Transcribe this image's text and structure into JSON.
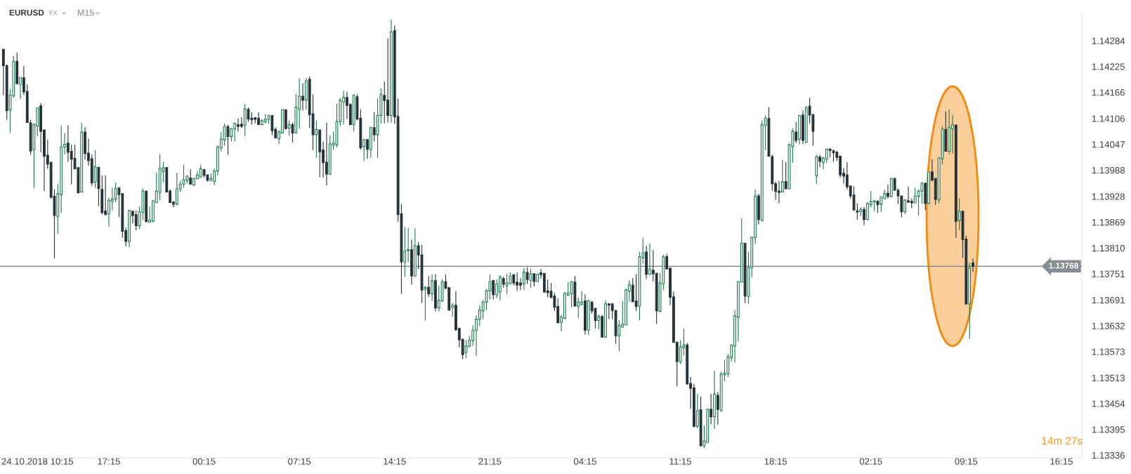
{
  "chart_data": {
    "type": "candlestick",
    "title": "EURUSD",
    "annotations": [
      "FX",
      "M15",
      "14m 27s"
    ],
    "categories": [
      null,
      null,
      null,
      null,
      null,
      null,
      null,
      null,
      null,
      null,
      "24.10.2018 10:15",
      null,
      null,
      null,
      null,
      null,
      null,
      null,
      null,
      null,
      null,
      null,
      null,
      null,
      null,
      null,
      null,
      null,
      null,
      null,
      null,
      "17:15",
      null,
      null,
      null,
      null,
      null,
      null,
      null,
      null,
      null,
      null,
      null,
      null,
      null,
      null,
      null,
      null,
      null,
      null,
      null,
      null,
      null,
      null,
      null,
      null,
      null,
      null,
      null,
      "00:15",
      null,
      null,
      null,
      null,
      null,
      null,
      null,
      null,
      null,
      null,
      null,
      null,
      null,
      null,
      null,
      null,
      null,
      null,
      null,
      null,
      null,
      null,
      null,
      null,
      null,
      null,
      null,
      "07:15",
      null,
      null,
      null,
      null,
      null,
      null,
      null,
      null,
      null,
      null,
      null,
      null,
      null,
      null,
      null,
      null,
      null,
      null,
      null,
      null,
      null,
      null,
      null,
      null,
      null,
      null,
      null,
      "14:15",
      null,
      null,
      null,
      null,
      null,
      null,
      null,
      null,
      null,
      null,
      null,
      null,
      null,
      null,
      null,
      null,
      null,
      null,
      null,
      null,
      null,
      null,
      null,
      null,
      null,
      null,
      null,
      "21:15",
      null,
      null,
      null,
      null,
      null,
      null,
      null,
      null,
      null,
      null,
      null,
      null,
      null,
      null,
      null,
      null,
      null,
      null,
      null,
      null,
      null,
      null,
      null,
      null,
      null,
      null,
      null,
      "04:15",
      null,
      null,
      null,
      null,
      null,
      null,
      null,
      null,
      null,
      null,
      null,
      null,
      null,
      null,
      null,
      null,
      null,
      null,
      null,
      null,
      null,
      null,
      null,
      null,
      null,
      null,
      null,
      "11:15",
      null,
      null,
      null,
      null,
      null,
      null,
      null,
      null,
      null,
      null,
      null,
      null,
      null,
      null,
      null,
      null,
      null,
      null,
      null,
      null,
      null,
      null,
      null,
      null,
      null,
      null,
      null,
      "18:15",
      null,
      null,
      null,
      null,
      null,
      null,
      null,
      null,
      null,
      null,
      null,
      null,
      null,
      null,
      null,
      null,
      null,
      null,
      null,
      null,
      null,
      null,
      null,
      null,
      null,
      null,
      null,
      "02:15",
      null,
      null,
      null,
      null,
      null,
      null,
      null,
      null,
      null,
      null,
      null,
      null,
      null,
      null,
      null,
      null,
      null,
      null,
      null,
      null,
      null,
      null,
      null,
      null,
      null,
      null,
      null,
      "09:15",
      null,
      null,
      null,
      null,
      null,
      null,
      null,
      null,
      null,
      null,
      null,
      null,
      null,
      null,
      null,
      null,
      null,
      null,
      null,
      null,
      null,
      null,
      null,
      null,
      null,
      null,
      null,
      "16:15",
      null,
      null,
      null,
      null,
      null,
      null
    ],
    "ohlc": [
      [
        1.14264,
        1.14266,
        1.1416,
        1.14227
      ],
      [
        1.14227,
        1.1423,
        1.14103,
        1.14124
      ],
      [
        1.14126,
        1.14173,
        1.14073,
        1.1416
      ],
      [
        1.14158,
        1.14249,
        1.14154,
        1.14237
      ],
      [
        1.14237,
        1.14257,
        1.14184,
        1.14186
      ],
      [
        1.14184,
        1.142,
        1.14151,
        1.142
      ],
      [
        1.14199,
        1.14226,
        1.1416,
        1.14167
      ],
      [
        1.14168,
        1.14184,
        1.14097,
        1.14097
      ],
      [
        1.14096,
        1.14103,
        1.14023,
        1.14032
      ],
      [
        1.14035,
        1.14095,
        1.13947,
        1.14093
      ],
      [
        1.14089,
        1.14131,
        1.14066,
        1.14131
      ],
      [
        1.14135,
        1.14141,
        1.14029,
        1.14077
      ],
      [
        1.1408,
        1.1408,
        1.1394,
        1.1402
      ],
      [
        1.14022,
        1.14058,
        1.13991,
        1.14002
      ],
      [
        1.14006,
        1.14007,
        1.13923,
        1.13926
      ],
      [
        1.13928,
        1.13944,
        1.13786,
        1.13884
      ],
      [
        1.13882,
        1.13956,
        1.13842,
        1.13934
      ],
      [
        1.13932,
        1.1409,
        1.1389,
        1.14041
      ],
      [
        1.14041,
        1.14073,
        1.14024,
        1.14047
      ],
      [
        1.1405,
        1.14091,
        1.14007,
        1.14029
      ],
      [
        1.14031,
        1.14046,
        1.13955,
        1.14013
      ],
      [
        1.14015,
        1.14046,
        1.13991,
        1.13991
      ],
      [
        1.13994,
        1.13995,
        1.13936,
        1.13936
      ],
      [
        1.13938,
        1.14096,
        1.13937,
        1.14075
      ],
      [
        1.14075,
        1.14086,
        1.14012,
        1.14026
      ],
      [
        1.14027,
        1.1406,
        1.13998,
        1.1401
      ],
      [
        1.14014,
        1.14024,
        1.13952,
        1.13959
      ],
      [
        1.13961,
        1.14034,
        1.13948,
        1.13996
      ],
      [
        1.13994,
        1.13996,
        1.13906,
        1.13946
      ],
      [
        1.13944,
        1.13976,
        1.13887,
        1.13891
      ],
      [
        1.13895,
        1.13976,
        1.13884,
        1.13887
      ],
      [
        1.13888,
        1.13925,
        1.13859,
        1.13919
      ],
      [
        1.13917,
        1.13948,
        1.13896,
        1.13922
      ],
      [
        1.13922,
        1.1396,
        1.13914,
        1.13946
      ],
      [
        1.13947,
        1.13949,
        1.13881,
        1.13932
      ],
      [
        1.13934,
        1.13936,
        1.13833,
        1.13848
      ],
      [
        1.1385,
        1.13857,
        1.13814,
        1.13825
      ],
      [
        1.13825,
        1.13896,
        1.13811,
        1.13896
      ],
      [
        1.13894,
        1.13895,
        1.13866,
        1.13884
      ],
      [
        1.13886,
        1.13896,
        1.1385,
        1.13861
      ],
      [
        1.13861,
        1.13905,
        1.13853,
        1.13893
      ],
      [
        1.13891,
        1.13946,
        1.13874,
        1.1394
      ],
      [
        1.1394,
        1.1394,
        1.1387,
        1.1387
      ],
      [
        1.13869,
        1.13905,
        1.13868,
        1.13874
      ],
      [
        1.13871,
        1.13919,
        1.13869,
        1.13918
      ],
      [
        1.13914,
        1.13982,
        1.13913,
        1.1394
      ],
      [
        1.13937,
        1.14025,
        1.13919,
        1.13992
      ],
      [
        1.13985,
        1.14007,
        1.1396,
        1.13993
      ],
      [
        1.13994,
        1.13995,
        1.13938,
        1.13938
      ],
      [
        1.1394,
        1.13944,
        1.13913,
        1.13914
      ],
      [
        1.13915,
        1.13917,
        1.13903,
        1.1391
      ],
      [
        1.13911,
        1.13982,
        1.13907,
        1.13945
      ],
      [
        1.13945,
        1.13963,
        1.13938,
        1.13956
      ],
      [
        1.13956,
        1.14,
        1.13948,
        1.13966
      ],
      [
        1.13965,
        1.13977,
        1.13957,
        1.13974
      ],
      [
        1.1397,
        1.1399,
        1.13955,
        1.13956
      ],
      [
        1.13954,
        1.1397,
        1.13952,
        1.13969
      ],
      [
        1.13968,
        1.13986,
        1.13967,
        1.13977
      ],
      [
        1.13972,
        1.14,
        1.13971,
        1.13991
      ],
      [
        1.13989,
        1.13991,
        1.13971,
        1.13976
      ],
      [
        1.13977,
        1.13978,
        1.13962,
        1.13965
      ],
      [
        1.13964,
        1.1398,
        1.13963,
        1.13969
      ],
      [
        1.13962,
        1.13992,
        1.13953,
        1.13986
      ],
      [
        1.13986,
        1.14045,
        1.13976,
        1.14041
      ],
      [
        1.14039,
        1.14075,
        1.14031,
        1.14059
      ],
      [
        1.14057,
        1.14095,
        1.14044,
        1.14088
      ],
      [
        1.14088,
        1.14091,
        1.14023,
        1.14065
      ],
      [
        1.14065,
        1.14084,
        1.14054,
        1.14083
      ],
      [
        1.14082,
        1.14097,
        1.14054,
        1.14095
      ],
      [
        1.14092,
        1.14106,
        1.14076,
        1.14088
      ],
      [
        1.14093,
        1.14109,
        1.14085,
        1.14088
      ],
      [
        1.1409,
        1.1414,
        1.14066,
        1.14128
      ],
      [
        1.14127,
        1.14132,
        1.14099,
        1.14105
      ],
      [
        1.14107,
        1.1412,
        1.14092,
        1.14103
      ],
      [
        1.14108,
        1.14108,
        1.14095,
        1.14104
      ],
      [
        1.14107,
        1.1412,
        1.14092,
        1.14092
      ],
      [
        1.14092,
        1.14105,
        1.14091,
        1.14101
      ],
      [
        1.14099,
        1.14116,
        1.14095,
        1.14105
      ],
      [
        1.14104,
        1.14115,
        1.14094,
        1.14113
      ],
      [
        1.14113,
        1.14114,
        1.14068,
        1.14078
      ],
      [
        1.14081,
        1.14086,
        1.1406,
        1.14062
      ],
      [
        1.1406,
        1.14078,
        1.14048,
        1.14076
      ],
      [
        1.14073,
        1.14127,
        1.14072,
        1.14126
      ],
      [
        1.14126,
        1.14127,
        1.14081,
        1.14083
      ],
      [
        1.14084,
        1.14102,
        1.14067,
        1.14092
      ],
      [
        1.14092,
        1.14097,
        1.14051,
        1.14073
      ],
      [
        1.14073,
        1.14162,
        1.14072,
        1.14132
      ],
      [
        1.14127,
        1.14198,
        1.14083,
        1.14157
      ],
      [
        1.14157,
        1.14187,
        1.14124,
        1.14148
      ],
      [
        1.14148,
        1.14199,
        1.14127,
        1.14192
      ],
      [
        1.14196,
        1.14202,
        1.14085,
        1.14115
      ],
      [
        1.14117,
        1.14161,
        1.14034,
        1.14069
      ],
      [
        1.14069,
        1.14102,
        1.14016,
        1.14081
      ],
      [
        1.1408,
        1.14081,
        1.13972,
        1.1403
      ],
      [
        1.14034,
        1.14053,
        1.13971,
        1.14005
      ],
      [
        1.14006,
        1.14097,
        1.13953,
        1.13979
      ],
      [
        1.13979,
        1.14067,
        1.13977,
        1.14048
      ],
      [
        1.14045,
        1.14076,
        1.14034,
        1.1405
      ],
      [
        1.14046,
        1.1414,
        1.1404,
        1.14099
      ],
      [
        1.14099,
        1.14153,
        1.14089,
        1.14148
      ],
      [
        1.14143,
        1.1417,
        1.14092,
        1.14154
      ],
      [
        1.14154,
        1.14167,
        1.14105,
        1.14136
      ],
      [
        1.14138,
        1.14141,
        1.14092,
        1.14092
      ],
      [
        1.14092,
        1.14161,
        1.14076,
        1.14159
      ],
      [
        1.14156,
        1.14161,
        1.14102,
        1.14105
      ],
      [
        1.14107,
        1.14127,
        1.14035,
        1.14039
      ],
      [
        1.14042,
        1.1406,
        1.14009,
        1.14058
      ],
      [
        1.14058,
        1.14058,
        1.14014,
        1.14036
      ],
      [
        1.14035,
        1.14087,
        1.14016,
        1.14086
      ],
      [
        1.14085,
        1.14121,
        1.14054,
        1.14069
      ],
      [
        1.14069,
        1.14152,
        1.14016,
        1.14113
      ],
      [
        1.14113,
        1.14175,
        1.14094,
        1.14162
      ],
      [
        1.14159,
        1.14191,
        1.14095,
        1.14147
      ],
      [
        1.14148,
        1.14289,
        1.14097,
        1.14113
      ],
      [
        1.14113,
        1.14332,
        1.14097,
        1.14304
      ],
      [
        1.14307,
        1.14319,
        1.14094,
        1.1411
      ],
      [
        1.14111,
        1.14151,
        1.1387,
        1.13886
      ],
      [
        1.13888,
        1.1391,
        1.13705,
        1.13778
      ],
      [
        1.13778,
        1.13858,
        1.13744,
        1.13803
      ],
      [
        1.13804,
        1.13856,
        1.13778,
        1.13806
      ],
      [
        1.13806,
        1.13829,
        1.13726,
        1.13746
      ],
      [
        1.13746,
        1.13855,
        1.13744,
        1.13815
      ],
      [
        1.13815,
        1.13824,
        1.13762,
        1.13794
      ],
      [
        1.13794,
        1.13817,
        1.13684,
        1.13714
      ],
      [
        1.13716,
        1.13723,
        1.13644,
        1.1372
      ],
      [
        1.1372,
        1.13746,
        1.13698,
        1.13705
      ],
      [
        1.13705,
        1.1375,
        1.13689,
        1.13735
      ],
      [
        1.13735,
        1.1375,
        1.13665,
        1.13673
      ],
      [
        1.13673,
        1.13724,
        1.13665,
        1.1369
      ],
      [
        1.13689,
        1.13738,
        1.13687,
        1.13733
      ],
      [
        1.13733,
        1.13749,
        1.13716,
        1.13718
      ],
      [
        1.13719,
        1.13721,
        1.13666,
        1.13668
      ],
      [
        1.13674,
        1.13684,
        1.13653,
        1.13679
      ],
      [
        1.13679,
        1.13711,
        1.1362,
        1.13623
      ],
      [
        1.13626,
        1.13628,
        1.13583,
        1.136
      ],
      [
        1.13601,
        1.13603,
        1.13556,
        1.13566
      ],
      [
        1.13571,
        1.13599,
        1.13558,
        1.13586
      ],
      [
        1.13585,
        1.13609,
        1.13583,
        1.13599
      ],
      [
        1.13598,
        1.13633,
        1.13586,
        1.13621
      ],
      [
        1.13622,
        1.13656,
        1.13563,
        1.13647
      ],
      [
        1.13647,
        1.13679,
        1.13631,
        1.13668
      ],
      [
        1.13666,
        1.13691,
        1.13647,
        1.13686
      ],
      [
        1.13686,
        1.13716,
        1.13668,
        1.13712
      ],
      [
        1.13712,
        1.13749,
        1.13692,
        1.13733
      ],
      [
        1.13736,
        1.13736,
        1.13692,
        1.13703
      ],
      [
        1.13703,
        1.13738,
        1.13695,
        1.13728
      ],
      [
        1.13709,
        1.13748,
        1.1369,
        1.13744
      ],
      [
        1.1374,
        1.13744,
        1.13719,
        1.13727
      ],
      [
        1.13723,
        1.1375,
        1.13705,
        1.1373
      ],
      [
        1.13728,
        1.13754,
        1.13727,
        1.13746
      ],
      [
        1.13749,
        1.13749,
        1.13725,
        1.1373
      ],
      [
        1.13732,
        1.13754,
        1.13712,
        1.13725
      ],
      [
        1.1373,
        1.13741,
        1.13714,
        1.13725
      ],
      [
        1.13728,
        1.13765,
        1.13714,
        1.13755
      ],
      [
        1.13754,
        1.13766,
        1.13728,
        1.13738
      ],
      [
        1.13736,
        1.13762,
        1.13719,
        1.13751
      ],
      [
        1.13751,
        1.13751,
        1.13722,
        1.13733
      ],
      [
        1.13733,
        1.13751,
        1.13733,
        1.1375
      ],
      [
        1.13753,
        1.13762,
        1.1374,
        1.13749
      ],
      [
        1.13752,
        1.13752,
        1.13708,
        1.13709
      ],
      [
        1.13712,
        1.13738,
        1.13697,
        1.13708
      ],
      [
        1.13711,
        1.1373,
        1.13695,
        1.13697
      ],
      [
        1.137,
        1.13707,
        1.13666,
        1.13674
      ],
      [
        1.13676,
        1.13695,
        1.13638,
        1.13639
      ],
      [
        1.1364,
        1.13657,
        1.13619,
        1.13652
      ],
      [
        1.13649,
        1.13709,
        1.13647,
        1.13707
      ],
      [
        1.13702,
        1.13732,
        1.137,
        1.13707
      ],
      [
        1.13705,
        1.13735,
        1.13674,
        1.13733
      ],
      [
        1.13732,
        1.13746,
        1.13677,
        1.13677
      ],
      [
        1.13677,
        1.13697,
        1.1365,
        1.13687
      ],
      [
        1.13681,
        1.13711,
        1.13679,
        1.13686
      ],
      [
        1.13689,
        1.13704,
        1.13612,
        1.13622
      ],
      [
        1.13622,
        1.13692,
        1.13611,
        1.13689
      ],
      [
        1.13686,
        1.13689,
        1.1366,
        1.13666
      ],
      [
        1.13671,
        1.13674,
        1.13626,
        1.13644
      ],
      [
        1.13644,
        1.13658,
        1.13624,
        1.13653
      ],
      [
        1.13653,
        1.13657,
        1.13606,
        1.13606
      ],
      [
        1.13606,
        1.1369,
        1.13606,
        1.13682
      ],
      [
        1.13682,
        1.13684,
        1.13647,
        1.13679
      ],
      [
        1.13682,
        1.13684,
        1.13647,
        1.13667
      ],
      [
        1.13667,
        1.13668,
        1.13591,
        1.13609
      ],
      [
        1.13609,
        1.13645,
        1.13574,
        1.13633
      ],
      [
        1.13629,
        1.13689,
        1.13629,
        1.13636
      ],
      [
        1.13634,
        1.13717,
        1.13634,
        1.13714
      ],
      [
        1.13711,
        1.13736,
        1.13687,
        1.13726
      ],
      [
        1.13725,
        1.13741,
        1.13687,
        1.13687
      ],
      [
        1.13689,
        1.1375,
        1.13666,
        1.13676
      ],
      [
        1.13677,
        1.13801,
        1.13644,
        1.1379
      ],
      [
        1.13788,
        1.13833,
        1.13775,
        1.13799
      ],
      [
        1.13801,
        1.13815,
        1.13739,
        1.1375
      ],
      [
        1.1375,
        1.1382,
        1.13748,
        1.13762
      ],
      [
        1.13759,
        1.13805,
        1.13733,
        1.13751
      ],
      [
        1.13752,
        1.13753,
        1.13636,
        1.13666
      ],
      [
        1.13665,
        1.13752,
        1.13663,
        1.1373
      ],
      [
        1.13728,
        1.13794,
        1.13714,
        1.1379
      ],
      [
        1.1379,
        1.13796,
        1.1376,
        1.13762
      ],
      [
        1.13764,
        1.13764,
        1.13679,
        1.13697
      ],
      [
        1.13698,
        1.13711,
        1.13594,
        1.13594
      ],
      [
        1.13594,
        1.13596,
        1.13494,
        1.1355
      ],
      [
        1.1355,
        1.13599,
        1.13545,
        1.13584
      ],
      [
        1.13582,
        1.13626,
        1.13564,
        1.13588
      ],
      [
        1.13588,
        1.13593,
        1.13497,
        1.13499
      ],
      [
        1.135,
        1.13515,
        1.13442,
        1.13489
      ],
      [
        1.1349,
        1.13499,
        1.134,
        1.13402
      ],
      [
        1.13402,
        1.13476,
        1.13398,
        1.13438
      ],
      [
        1.1344,
        1.1347,
        1.13355,
        1.13358
      ],
      [
        1.13357,
        1.13403,
        1.13353,
        1.13369
      ],
      [
        1.13365,
        1.13441,
        1.13365,
        1.13441
      ],
      [
        1.13441,
        1.13476,
        1.13407,
        1.13424
      ],
      [
        1.13424,
        1.13529,
        1.13396,
        1.13476
      ],
      [
        1.13473,
        1.13481,
        1.13406,
        1.13441
      ],
      [
        1.13438,
        1.13527,
        1.13435,
        1.13522
      ],
      [
        1.1352,
        1.13554,
        1.13505,
        1.13524
      ],
      [
        1.13522,
        1.13568,
        1.13515,
        1.13561
      ],
      [
        1.13559,
        1.13589,
        1.13551,
        1.13588
      ],
      [
        1.13586,
        1.13668,
        1.13548,
        1.13655
      ],
      [
        1.13652,
        1.13735,
        1.13596,
        1.13733
      ],
      [
        1.13732,
        1.13878,
        1.13731,
        1.13821
      ],
      [
        1.13821,
        1.13821,
        1.13684,
        1.137
      ],
      [
        1.13699,
        1.13801,
        1.13682,
        1.13765
      ],
      [
        1.13765,
        1.13836,
        1.13743,
        1.13834
      ],
      [
        1.13834,
        1.13944,
        1.13819,
        1.13929
      ],
      [
        1.13929,
        1.13934,
        1.13864,
        1.13875
      ],
      [
        1.13873,
        1.14102,
        1.13871,
        1.14092
      ],
      [
        1.1409,
        1.14113,
        1.14033,
        1.14107
      ],
      [
        1.14106,
        1.14132,
        1.1402,
        1.1402
      ],
      [
        1.14019,
        1.14023,
        1.13941,
        1.13957
      ],
      [
        1.13957,
        1.13962,
        1.1392,
        1.13939
      ],
      [
        1.1394,
        1.13963,
        1.13912,
        1.13937
      ],
      [
        1.13938,
        1.14011,
        1.13937,
        1.13961
      ],
      [
        1.13962,
        1.14006,
        1.13945,
        1.13945
      ],
      [
        1.13945,
        1.14049,
        1.13945,
        1.14046
      ],
      [
        1.14042,
        1.14084,
        1.14005,
        1.14077
      ],
      [
        1.14075,
        1.14098,
        1.1405,
        1.14056
      ],
      [
        1.14059,
        1.14114,
        1.14047,
        1.14113
      ],
      [
        1.14114,
        1.14124,
        1.14048,
        1.14056
      ],
      [
        1.14052,
        1.14135,
        1.1405,
        1.14131
      ],
      [
        1.14134,
        1.14154,
        1.14095,
        1.14114
      ],
      [
        1.14115,
        1.14116,
        1.14044,
        1.14077
      ],
      [
        1.13975,
        1.14023,
        1.13956,
        1.14019
      ],
      [
        1.14018,
        1.14022,
        1.13995,
        1.14008
      ],
      [
        1.14006,
        1.14018,
        1.1399,
        1.14016
      ],
      [
        1.14013,
        1.14037,
        1.14005,
        1.14036
      ],
      [
        1.14036,
        1.14038,
        1.14017,
        1.14033
      ],
      [
        1.14032,
        1.14035,
        1.14007,
        1.14028
      ],
      [
        1.14029,
        1.14032,
        1.14009,
        1.14017
      ],
      [
        1.1402,
        1.14021,
        1.13971,
        1.13977
      ],
      [
        1.13981,
        1.13993,
        1.13957,
        1.13974
      ],
      [
        1.13977,
        1.14006,
        1.13944,
        1.1395
      ],
      [
        1.13952,
        1.13952,
        1.13923,
        1.13929
      ],
      [
        1.13931,
        1.13951,
        1.13895,
        1.13897
      ],
      [
        1.13895,
        1.13912,
        1.13875,
        1.13892
      ],
      [
        1.13893,
        1.13903,
        1.13882,
        1.13898
      ],
      [
        1.13898,
        1.13904,
        1.13862,
        1.13875
      ],
      [
        1.13875,
        1.13915,
        1.13874,
        1.13911
      ],
      [
        1.13909,
        1.13941,
        1.13903,
        1.13916
      ],
      [
        1.13915,
        1.13919,
        1.13894,
        1.13918
      ],
      [
        1.13917,
        1.13919,
        1.1389,
        1.13909
      ],
      [
        1.1391,
        1.13928,
        1.13892,
        1.13927
      ],
      [
        1.13923,
        1.13943,
        1.13922,
        1.13934
      ],
      [
        1.13935,
        1.13955,
        1.13923,
        1.13928
      ],
      [
        1.13928,
        1.13969,
        1.13926,
        1.13969
      ],
      [
        1.13969,
        1.13969,
        1.13941,
        1.13942
      ],
      [
        1.13942,
        1.13946,
        1.1391,
        1.13929
      ],
      [
        1.13929,
        1.13929,
        1.1388,
        1.13893
      ],
      [
        1.13893,
        1.13921,
        1.13887,
        1.1392
      ],
      [
        1.13918,
        1.1395,
        1.13913,
        1.13915
      ],
      [
        1.13917,
        1.13923,
        1.13901,
        1.13913
      ],
      [
        1.13913,
        1.13948,
        1.13912,
        1.13929
      ],
      [
        1.13928,
        1.13944,
        1.13885,
        1.1394
      ],
      [
        1.1394,
        1.13961,
        1.13911,
        1.13958
      ],
      [
        1.13958,
        1.1396,
        1.13897,
        1.13912
      ],
      [
        1.13912,
        1.13985,
        1.13912,
        1.13984
      ],
      [
        1.13984,
        1.14013,
        1.13963,
        1.13965
      ],
      [
        1.13969,
        1.1397,
        1.13909,
        1.13921
      ],
      [
        1.1392,
        1.14017,
        1.13912,
        1.14016
      ],
      [
        1.14014,
        1.14089,
        1.14001,
        1.14082
      ],
      [
        1.14081,
        1.14122,
        1.14031,
        1.14031
      ],
      [
        1.14031,
        1.14127,
        1.14024,
        1.14086
      ],
      [
        1.14082,
        1.14114,
        1.14026,
        1.14092
      ],
      [
        1.14091,
        1.14092,
        1.13833,
        1.13871
      ],
      [
        1.13873,
        1.13924,
        1.13851,
        1.13894
      ],
      [
        1.13894,
        1.13894,
        1.13787,
        1.13829
      ],
      [
        1.1383,
        1.13838,
        1.13682,
        1.13682
      ],
      [
        1.13682,
        1.13776,
        1.13602,
        1.13764
      ],
      [
        1.13776,
        1.13786,
        1.13755,
        1.13768
      ],
      null,
      null,
      null,
      null,
      null,
      null,
      null,
      null,
      null,
      null,
      null,
      null,
      null,
      null,
      null,
      null,
      null,
      null,
      null,
      null,
      null,
      null,
      null,
      null,
      null,
      null,
      null,
      null,
      null,
      null,
      null,
      null
    ],
    "colors": [
      "#26323a",
      "#26323a",
      "#1e7d4f",
      "#1e7d4f",
      "#26323a",
      "#1e7d4f",
      "#26323a",
      "#26323a",
      "#26323a",
      "#1e7d4f",
      "#1e7d4f",
      "#26323a",
      "#26323a",
      "#26323a",
      "#26323a",
      "#26323a",
      "#1e7d4f",
      "#1e7d4f",
      "#1e7d4f",
      "#26323a",
      "#26323a",
      "#26323a",
      "#26323a",
      "#1e7d4f",
      "#26323a",
      "#26323a",
      "#26323a",
      "#1e7d4f",
      "#26323a",
      "#26323a",
      "#26323a",
      "#1e7d4f",
      "#1e7d4f",
      "#1e7d4f",
      "#26323a",
      "#26323a",
      "#26323a",
      "#1e7d4f",
      "#26323a",
      "#26323a",
      "#1e7d4f",
      "#1e7d4f",
      "#26323a",
      "#1e7d4f",
      "#1e7d4f",
      "#1e7d4f",
      "#1e7d4f",
      "#1e7d4f",
      "#26323a",
      "#26323a",
      "#26323a",
      "#1e7d4f",
      "#1e7d4f",
      "#1e7d4f",
      "#1e7d4f",
      "#26323a",
      "#1e7d4f",
      "#1e7d4f",
      "#1e7d4f",
      "#26323a",
      "#26323a",
      "#1e7d4f",
      "#1e7d4f",
      "#1e7d4f",
      "#1e7d4f",
      "#1e7d4f",
      "#26323a",
      "#1e7d4f",
      "#1e7d4f",
      "#26323a",
      "#26323a",
      "#1e7d4f",
      "#26323a",
      "#26323a",
      "#26323a",
      "#26323a",
      "#1e7d4f",
      "#1e7d4f",
      "#1e7d4f",
      "#26323a",
      "#26323a",
      "#1e7d4f",
      "#1e7d4f",
      "#26323a",
      "#1e7d4f",
      "#26323a",
      "#1e7d4f",
      "#1e7d4f",
      "#26323a",
      "#1e7d4f",
      "#26323a",
      "#26323a",
      "#1e7d4f",
      "#26323a",
      "#26323a",
      "#26323a",
      "#1e7d4f",
      "#1e7d4f",
      "#1e7d4f",
      "#1e7d4f",
      "#1e7d4f",
      "#26323a",
      "#26323a",
      "#1e7d4f",
      "#26323a",
      "#26323a",
      "#1e7d4f",
      "#26323a",
      "#1e7d4f",
      "#26323a",
      "#1e7d4f",
      "#1e7d4f",
      "#26323a",
      "#26323a",
      "#1e7d4f",
      "#26323a",
      "#26323a",
      "#26323a",
      "#1e7d4f",
      "#1e7d4f",
      "#26323a",
      "#1e7d4f",
      "#26323a",
      "#26323a",
      "#1e7d4f",
      "#26323a",
      "#1e7d4f",
      "#26323a",
      "#1e7d4f",
      "#1e7d4f",
      "#26323a",
      "#26323a",
      "#1e7d4f",
      "#26323a",
      "#26323a",
      "#26323a",
      "#1e7d4f",
      "#1e7d4f",
      "#1e7d4f",
      "#1e7d4f",
      "#1e7d4f",
      "#1e7d4f",
      "#1e7d4f",
      "#1e7d4f",
      "#26323a",
      "#1e7d4f",
      "#1e7d4f",
      "#26323a",
      "#1e7d4f",
      "#1e7d4f",
      "#26323a",
      "#26323a",
      "#26323a",
      "#1e7d4f",
      "#26323a",
      "#1e7d4f",
      "#26323a",
      "#1e7d4f",
      "#26323a",
      "#26323a",
      "#26323a",
      "#26323a",
      "#26323a",
      "#26323a",
      "#1e7d4f",
      "#1e7d4f",
      "#1e7d4f",
      "#1e7d4f",
      "#26323a",
      "#1e7d4f",
      "#1e7d4f",
      "#26323a",
      "#1e7d4f",
      "#26323a",
      "#26323a",
      "#1e7d4f",
      "#26323a",
      "#1e7d4f",
      "#26323a",
      "#26323a",
      "#26323a",
      "#1e7d4f",
      "#1e7d4f",
      "#1e7d4f",
      "#1e7d4f",
      "#26323a",
      "#26323a",
      "#1e7d4f",
      "#1e7d4f",
      "#26323a",
      "#1e7d4f",
      "#26323a",
      "#26323a",
      "#1e7d4f",
      "#1e7d4f",
      "#26323a",
      "#26323a",
      "#26323a",
      "#26323a",
      "#1e7d4f",
      "#1e7d4f",
      "#26323a",
      "#26323a",
      "#26323a",
      "#1e7d4f",
      "#26323a",
      "#1e7d4f",
      "#1e7d4f",
      "#26323a",
      "#1e7d4f",
      "#26323a",
      "#1e7d4f",
      "#1e7d4f",
      "#1e7d4f",
      "#1e7d4f",
      "#1e7d4f",
      "#1e7d4f",
      "#1e7d4f",
      "#26323a",
      "#1e7d4f",
      "#1e7d4f",
      "#1e7d4f",
      "#26323a",
      "#1e7d4f",
      "#1e7d4f",
      "#26323a",
      "#26323a",
      "#26323a",
      "#26323a",
      "#1e7d4f",
      "#26323a",
      "#1e7d4f",
      "#1e7d4f",
      "#26323a",
      "#1e7d4f",
      "#26323a",
      "#1e7d4f",
      "#26323a",
      "#26323a",
      "#1e7d4f",
      "#26323a",
      "#1e7d4f",
      "#1e7d4f",
      "#26323a",
      "#26323a",
      "#26323a",
      "#26323a",
      "#26323a",
      "#26323a",
      "#26323a",
      "#26323a",
      "#26323a",
      "#1e7d4f",
      "#26323a",
      "#1e7d4f",
      "#1e7d4f",
      "#1e7d4f",
      "#26323a",
      "#1e7d4f",
      "#1e7d4f",
      "#26323a",
      "#1e7d4f",
      "#26323a",
      "#26323a",
      "#26323a",
      "#1e7d4f",
      "#26323a",
      "#26323a",
      "#1e7d4f",
      "#1e7d4f",
      "#1e7d4f",
      "#26323a",
      "#1e7d4f",
      "#26323a",
      "#26323a",
      "#1e7d4f",
      "#1e7d4f",
      "#26323a",
      "#1e7d4f",
      "#1e7d4f",
      "#26323a",
      "#1e7d4f",
      "#26323a",
      "#26323a",
      "#1e7d4f",
      "#26323a",
      null,
      null,
      null,
      null,
      null,
      null,
      null,
      null,
      null,
      null,
      null,
      null,
      null,
      null,
      null,
      null,
      null,
      null,
      null,
      null,
      null,
      null,
      null,
      null,
      null,
      null,
      null,
      null,
      null,
      null,
      null,
      null
    ],
    "ylim": [
      1.1333,
      1.14345
    ],
    "yticks": [
      1.14284,
      1.14225,
      1.14166,
      1.14106,
      1.14047,
      1.13988,
      1.13928,
      1.13869,
      {
        "value": 1.1381,
        "label": "1.13810"
      },
      1.13751,
      1.13691,
      1.13632,
      1.13573,
      1.13513,
      1.13454,
      1.13395,
      1.13336
    ],
    "ref_lines": [
      {
        "axis": "y",
        "value": 1.13768,
        "label": "1.13768",
        "color": "#848c94"
      }
    ]
  }
}
